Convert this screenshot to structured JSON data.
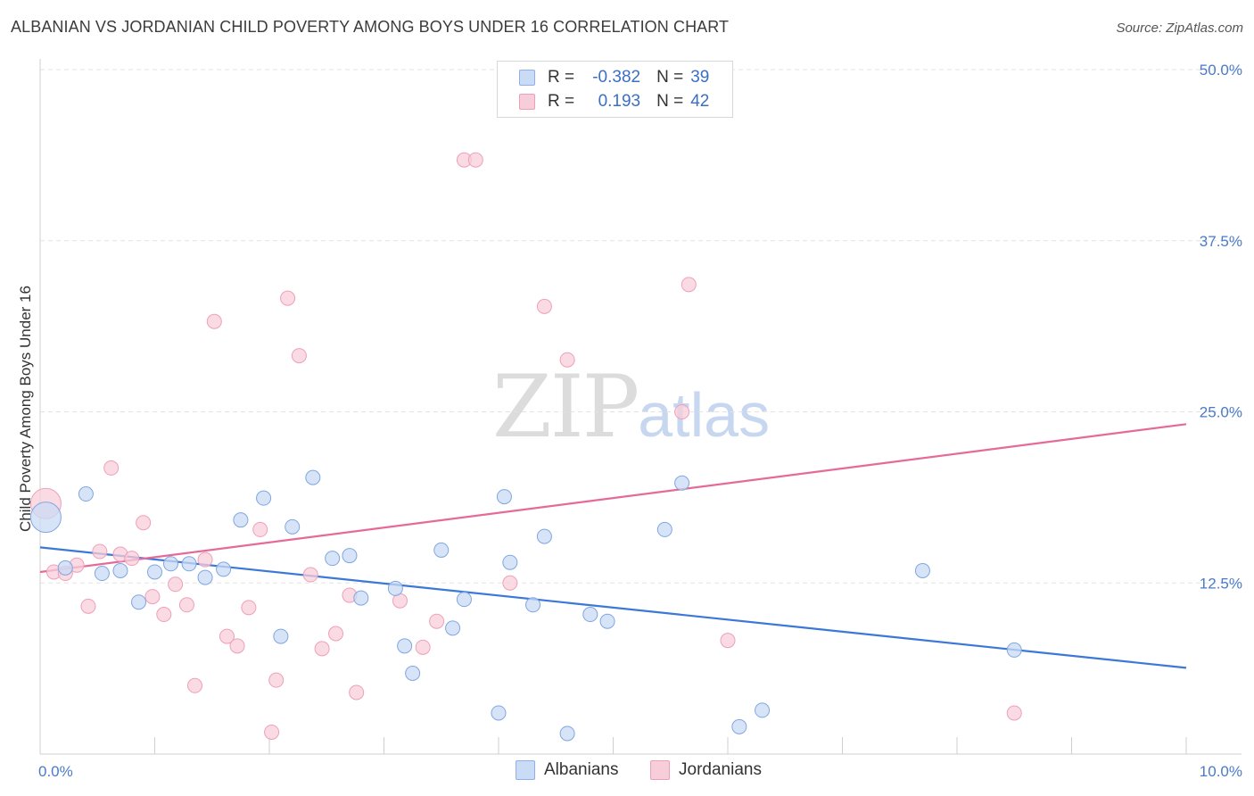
{
  "header": {
    "title": "ALBANIAN VS JORDANIAN CHILD POVERTY AMONG BOYS UNDER 16 CORRELATION CHART",
    "source": "Source: ZipAtlas.com"
  },
  "watermark": {
    "zip": "ZIP",
    "atlas": "atlas"
  },
  "legend": {
    "rows": [
      {
        "r_label": "R =",
        "r_value": "-0.382",
        "n_label": "N =",
        "n_value": "39",
        "color": "#a9c6f0"
      },
      {
        "r_label": "R =",
        "r_value": "0.193",
        "n_label": "N =",
        "n_value": "42",
        "color": "#f6b9cb"
      }
    ]
  },
  "bottom_legend": {
    "albanians": "Albanians",
    "jordanians": "Jordanians"
  },
  "chart_data": {
    "type": "scatter",
    "ylabel": "Child Poverty Among Boys Under 16",
    "xlim": [
      0,
      10
    ],
    "ylim": [
      0,
      50
    ],
    "x_tick_labels": [
      "0.0%",
      "10.0%"
    ],
    "y_tick_labels": [
      "12.5%",
      "25.0%",
      "37.5%",
      "50.0%"
    ],
    "y_ticks": [
      12.5,
      25.0,
      37.5,
      50.0
    ],
    "grid": true,
    "colors": {
      "albanians": "#3b78d8",
      "jordanians": "#e56a98",
      "albanians_fill": "#c9dbf5",
      "jordanians_fill": "#f8cdda"
    },
    "series": [
      {
        "name": "Albanians",
        "trend": {
          "x": [
            0,
            10
          ],
          "y": [
            15.1,
            6.3
          ]
        },
        "points": [
          [
            0.05,
            17.3
          ],
          [
            0.4,
            19.0
          ],
          [
            0.22,
            13.6
          ],
          [
            0.54,
            13.2
          ],
          [
            0.7,
            13.4
          ],
          [
            0.86,
            11.1
          ],
          [
            1.0,
            13.3
          ],
          [
            1.14,
            13.9
          ],
          [
            1.3,
            13.9
          ],
          [
            1.44,
            12.9
          ],
          [
            1.6,
            13.5
          ],
          [
            1.75,
            17.1
          ],
          [
            1.95,
            18.7
          ],
          [
            2.1,
            8.6
          ],
          [
            2.2,
            16.6
          ],
          [
            2.38,
            20.2
          ],
          [
            2.55,
            14.3
          ],
          [
            2.7,
            14.5
          ],
          [
            2.8,
            11.4
          ],
          [
            3.1,
            12.1
          ],
          [
            3.18,
            7.9
          ],
          [
            3.25,
            5.9
          ],
          [
            3.5,
            14.9
          ],
          [
            3.6,
            9.2
          ],
          [
            3.7,
            11.3
          ],
          [
            4.0,
            3.0
          ],
          [
            4.05,
            18.8
          ],
          [
            4.1,
            14.0
          ],
          [
            4.3,
            10.9
          ],
          [
            4.4,
            15.9
          ],
          [
            4.6,
            1.5
          ],
          [
            4.8,
            10.2
          ],
          [
            4.95,
            9.7
          ],
          [
            5.45,
            16.4
          ],
          [
            5.6,
            19.8
          ],
          [
            6.1,
            2.0
          ],
          [
            6.3,
            3.2
          ],
          [
            7.7,
            13.4
          ],
          [
            8.5,
            7.6
          ]
        ]
      },
      {
        "name": "Jordanians",
        "trend": {
          "x": [
            0,
            10
          ],
          "y": [
            13.3,
            24.1
          ]
        },
        "points": [
          [
            0.05,
            18.3
          ],
          [
            0.12,
            13.3
          ],
          [
            0.22,
            13.2
          ],
          [
            0.32,
            13.8
          ],
          [
            0.42,
            10.8
          ],
          [
            0.52,
            14.8
          ],
          [
            0.62,
            20.9
          ],
          [
            0.7,
            14.6
          ],
          [
            0.8,
            14.3
          ],
          [
            0.9,
            16.9
          ],
          [
            0.98,
            11.5
          ],
          [
            1.08,
            10.2
          ],
          [
            1.18,
            12.4
          ],
          [
            1.28,
            10.9
          ],
          [
            1.35,
            5.0
          ],
          [
            1.44,
            14.2
          ],
          [
            1.52,
            31.6
          ],
          [
            1.63,
            8.6
          ],
          [
            1.72,
            7.9
          ],
          [
            1.82,
            10.7
          ],
          [
            1.92,
            16.4
          ],
          [
            2.02,
            1.6
          ],
          [
            2.06,
            5.4
          ],
          [
            2.16,
            33.3
          ],
          [
            2.26,
            29.1
          ],
          [
            2.36,
            13.1
          ],
          [
            2.46,
            7.7
          ],
          [
            2.58,
            8.8
          ],
          [
            2.7,
            11.6
          ],
          [
            2.76,
            4.5
          ],
          [
            3.14,
            11.2
          ],
          [
            3.34,
            7.8
          ],
          [
            3.46,
            9.7
          ],
          [
            3.7,
            43.4
          ],
          [
            3.8,
            43.4
          ],
          [
            4.1,
            12.5
          ],
          [
            4.4,
            32.7
          ],
          [
            4.6,
            28.8
          ],
          [
            5.6,
            25.0
          ],
          [
            5.66,
            34.3
          ],
          [
            6.0,
            8.3
          ],
          [
            8.5,
            3.0
          ]
        ]
      }
    ],
    "bubbles": {
      "albanians_large_index": 0,
      "jordanians_large_index": 0
    }
  }
}
